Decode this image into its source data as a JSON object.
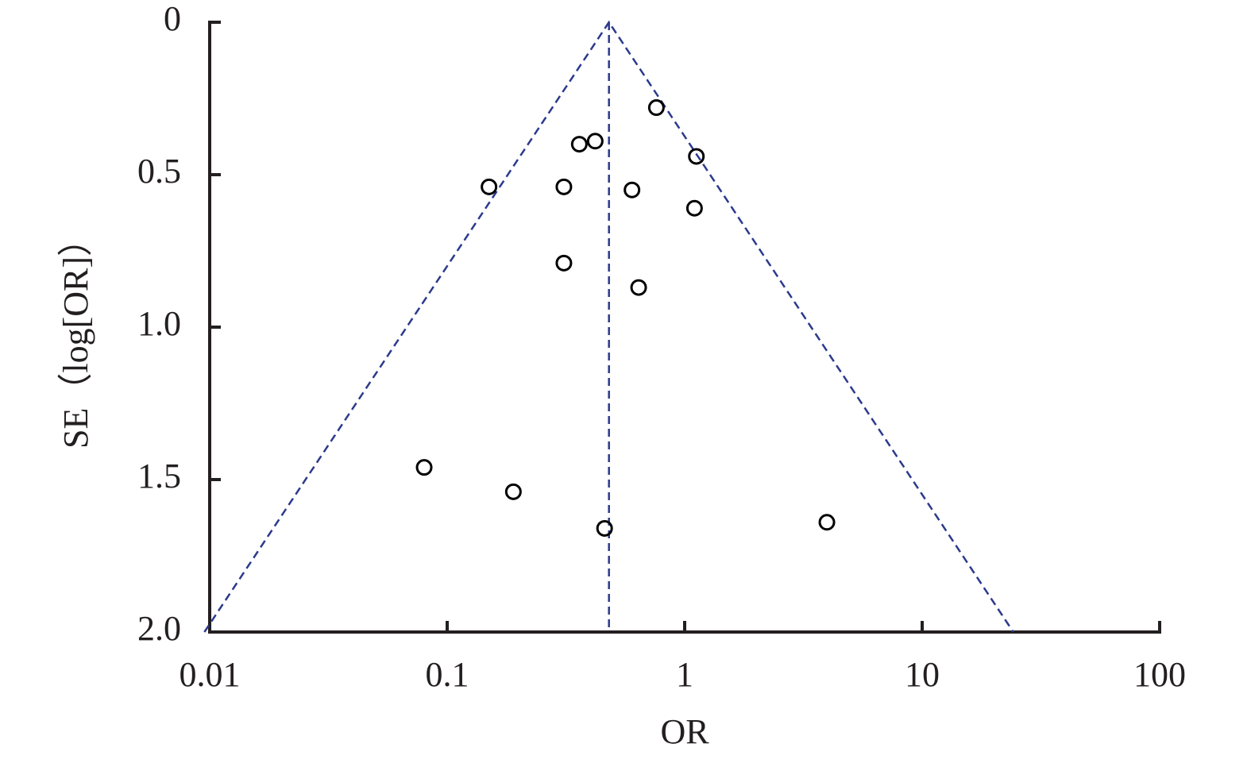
{
  "chart_data": {
    "type": "scatter",
    "x_label": "OR",
    "y_label": "SE（log[OR]）",
    "x": [
      0.76,
      0.42,
      0.36,
      1.12,
      0.15,
      0.31,
      0.6,
      1.1,
      0.31,
      0.64,
      0.08,
      0.19,
      0.46,
      3.97
    ],
    "values": [
      0.28,
      0.39,
      0.4,
      0.44,
      0.54,
      0.54,
      0.55,
      0.61,
      0.79,
      0.87,
      1.46,
      1.54,
      1.66,
      1.64
    ],
    "color": "#000000",
    "xlim": [
      0.01,
      100
    ],
    "ylim": [
      0,
      2
    ],
    "x_log": true,
    "y_inverted": true,
    "xticks": [
      0.01,
      0.1,
      1,
      10,
      100
    ],
    "yticks": [
      0,
      0.5,
      {
        "value": 1,
        "label": "1.0"
      },
      1.5,
      {
        "value": 2,
        "label": "2.0"
      }
    ],
    "funnel": {
      "x": [
        0.0095,
        0.48,
        24.2
      ],
      "y": [
        2,
        0,
        2
      ]
    },
    "reference_line": 0.48,
    "funnel_color": "#2b3a8c",
    "grid": false
  }
}
